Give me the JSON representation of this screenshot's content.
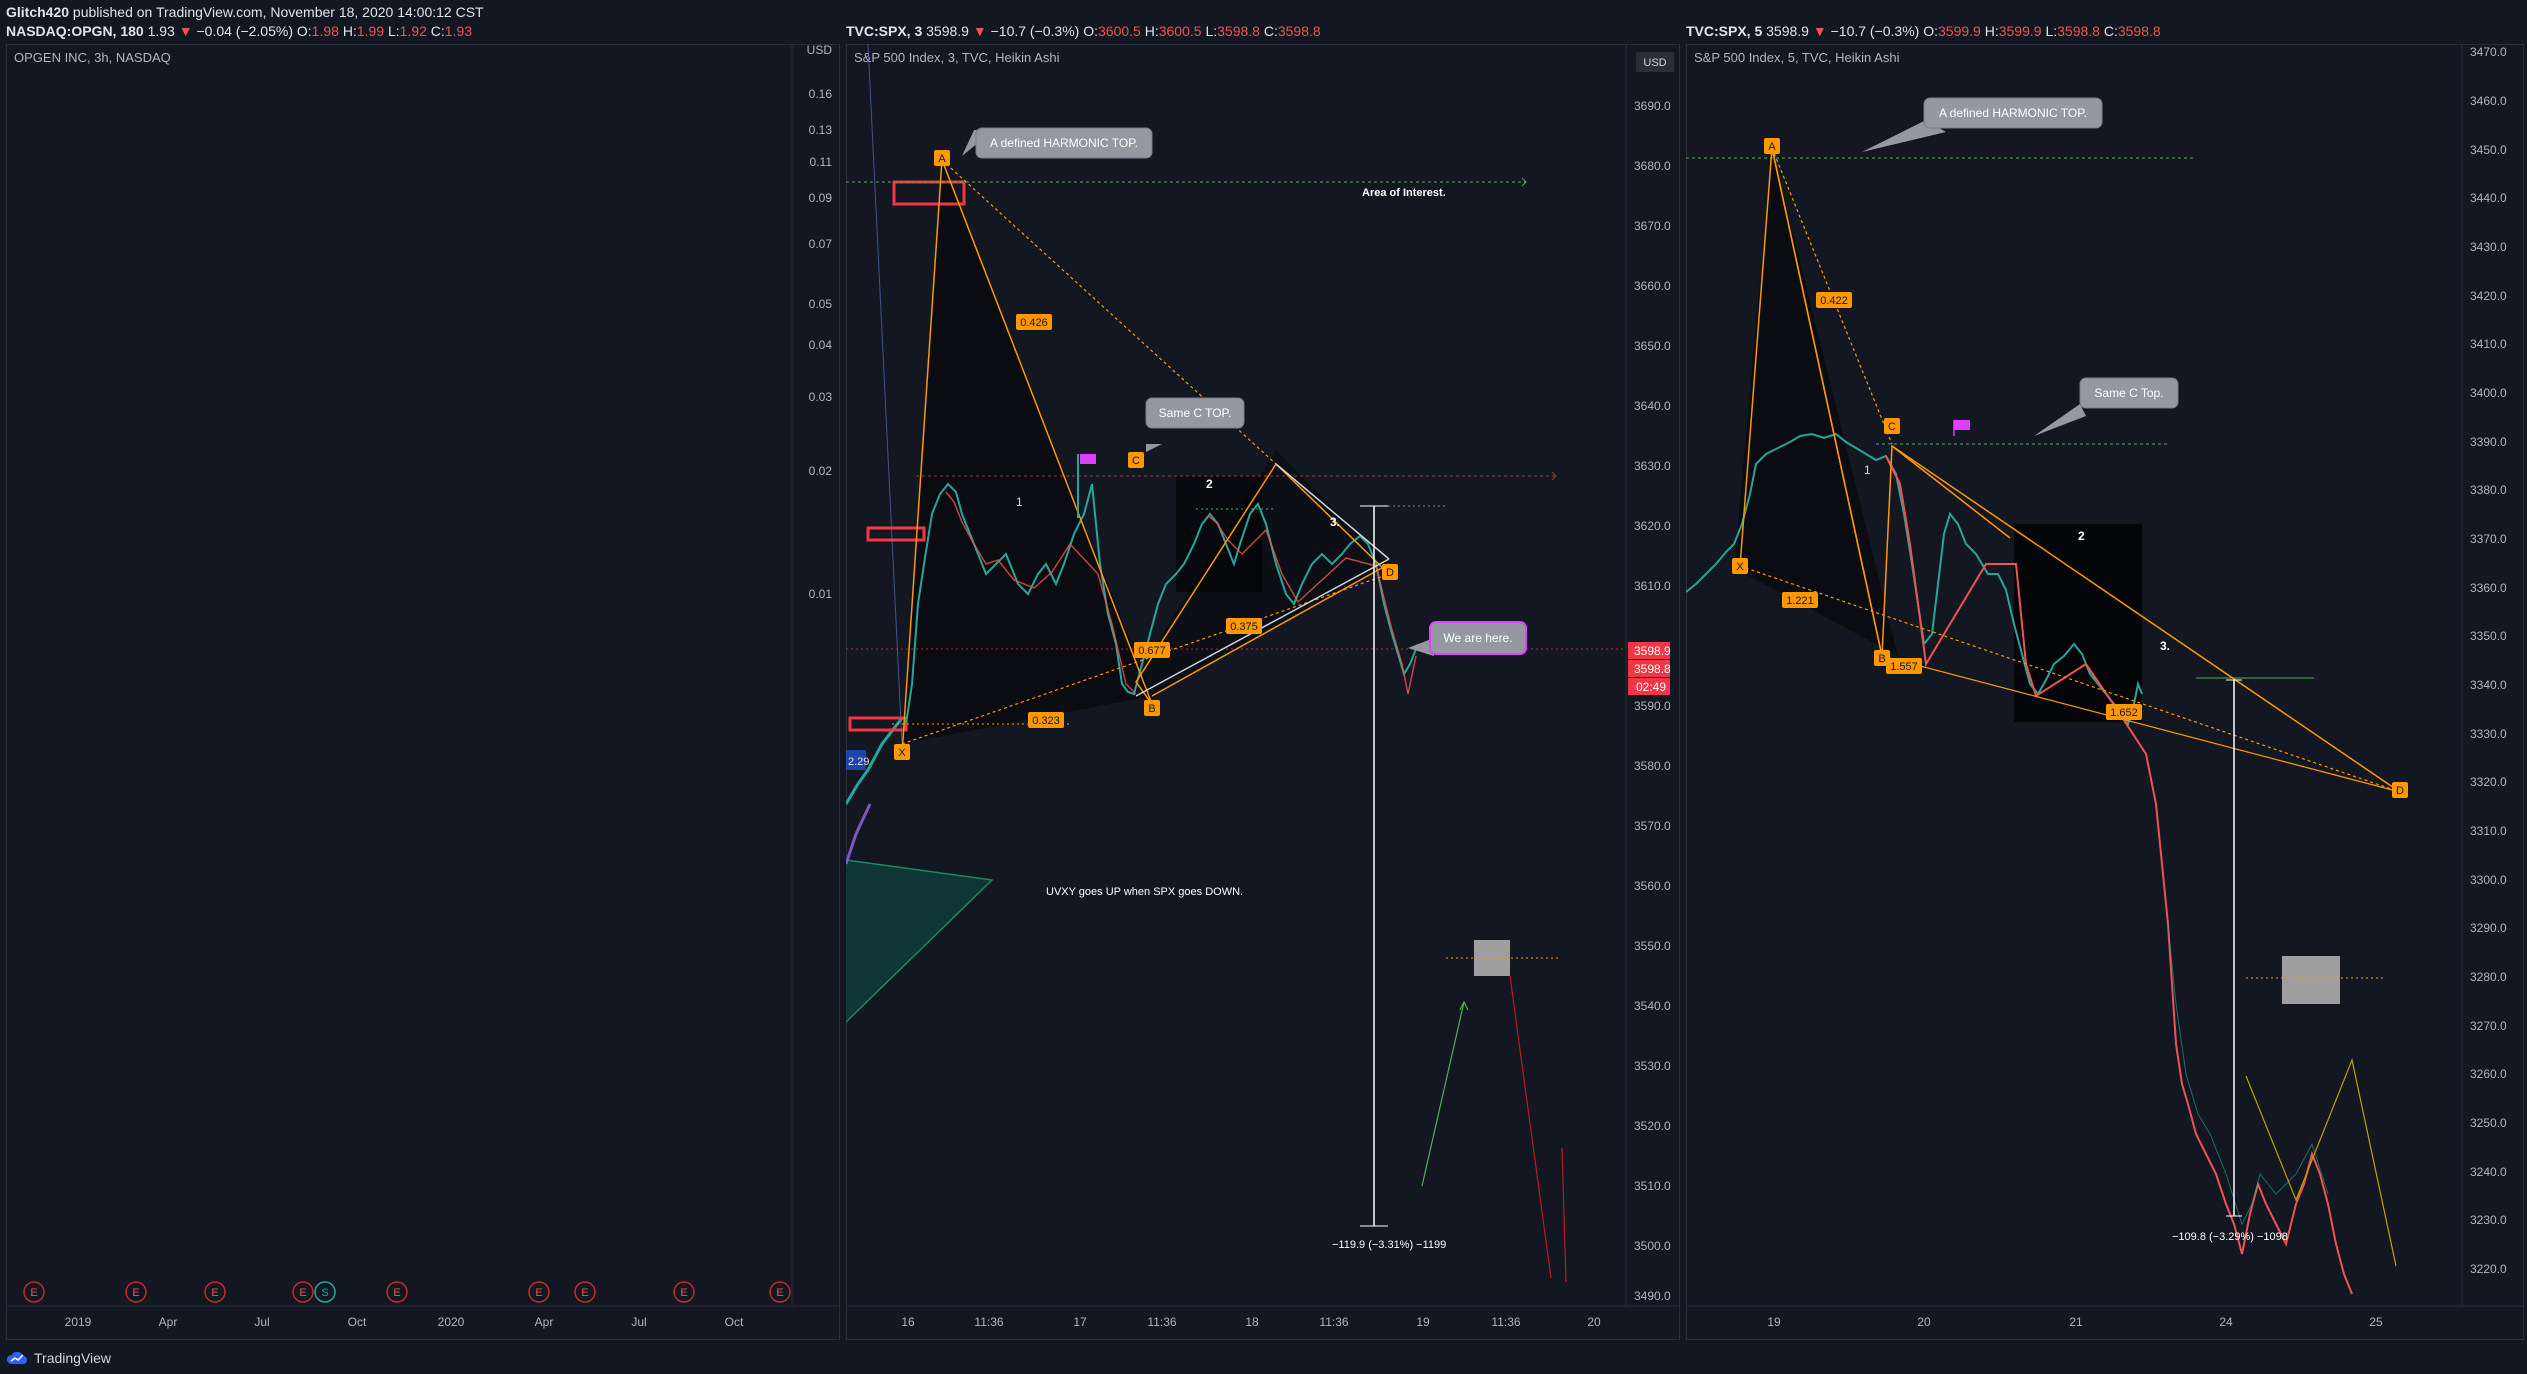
{
  "header": {
    "author": "Glitch420",
    "published": "published on TradingView.com, November 18, 2020 14:00:12 CST",
    "panel1": {
      "symbol": "NASDAQ:OPGN, 180",
      "last": "1.93",
      "change": "−0.04 (−2.05%)",
      "o_label": "O:",
      "o": "1.98",
      "h_label": "H:",
      "h": "1.99",
      "l_label": "L:",
      "l": "1.92",
      "c_label": "C:",
      "c": "1.93"
    },
    "panel2": {
      "symbol": "TVC:SPX, 3",
      "last": "3598.9",
      "change": "−10.7 (−0.3%)",
      "o_label": "O:",
      "o": "3600.5",
      "h_label": "H:",
      "h": "3600.5",
      "l_label": "L:",
      "l": "3598.8",
      "c_label": "C:",
      "c": "3598.8"
    },
    "panel3": {
      "symbol": "TVC:SPX, 5",
      "last": "3598.9",
      "change": "−10.7 (−0.3%)",
      "o_label": "O:",
      "o": "3599.9",
      "h_label": "H:",
      "h": "3599.9",
      "l_label": "L:",
      "l": "3598.8",
      "c_label": "C:",
      "c": "3598.8"
    }
  },
  "footer": {
    "brand": "TradingView"
  },
  "colors": {
    "background": "#131722",
    "up": "#26a69a",
    "down": "#ef5350",
    "harmonic": "#ff9800",
    "magenta": "#e91e63"
  },
  "panels": [
    {
      "legend": "OPGEN INC, 3h, NASDAQ",
      "y_ticks": [
        "USD",
        "0.16",
        "0.13",
        "0.11",
        "0.09",
        "0.07",
        "0.05",
        "0.04",
        "0.03",
        "0.02",
        "0.01"
      ],
      "x_ticks": [
        "2019",
        "Apr",
        "Jul",
        "Oct",
        "2020",
        "Apr",
        "Jul",
        "Oct"
      ],
      "earnings_markers": [
        "E",
        "E",
        "E",
        "E",
        "S",
        "E",
        "E",
        "E",
        "E",
        "E"
      ]
    },
    {
      "legend": "S&P 500 Index, 3, TVC, Heikin Ashi",
      "y_ticks": [
        "3690.0",
        "3680.0",
        "3670.0",
        "3660.0",
        "3650.0",
        "3640.0",
        "3630.0",
        "3620.0",
        "3610.0",
        "3590.0",
        "3580.0",
        "3570.0",
        "3560.0",
        "3550.0",
        "3540.0",
        "3530.0",
        "3520.0",
        "3510.0",
        "3500.0",
        "3490.0"
      ],
      "currency": "USD",
      "price_badges": [
        "3598.9",
        "3598.8",
        "02:49"
      ],
      "x_ticks": [
        "16",
        "11:36",
        "17",
        "11:36",
        "18",
        "11:36",
        "19",
        "11:36",
        "20"
      ],
      "callouts": [
        "A defined HARMONIC TOP.",
        "Same C TOP.",
        "We are here."
      ],
      "notes": [
        "Area of Interest.",
        "UVXY goes UP when SPX goes DOWN."
      ],
      "pattern_points": [
        "A",
        "B",
        "C",
        "D",
        "X"
      ],
      "ratios": [
        "0.426",
        "0.677",
        "0.323",
        "0.375"
      ],
      "wave_labels": [
        "1",
        "2",
        "3."
      ],
      "measure": "−119.9 (−3.31%) −1199",
      "edge_label": "2.29"
    },
    {
      "legend": "S&P 500 Index, 5, TVC, Heikin Ashi",
      "y_ticks": [
        "3470.0",
        "3460.0",
        "3450.0",
        "3440.0",
        "3430.0",
        "3420.0",
        "3410.0",
        "3400.0",
        "3390.0",
        "3380.0",
        "3370.0",
        "3360.0",
        "3350.0",
        "3340.0",
        "3330.0",
        "3320.0",
        "3310.0",
        "3300.0",
        "3290.0",
        "3280.0",
        "3270.0",
        "3260.0",
        "3250.0",
        "3240.0",
        "3230.0",
        "3220.0"
      ],
      "x_ticks": [
        "19",
        "20",
        "21",
        "24",
        "25"
      ],
      "callouts": [
        "A defined HARMONIC TOP.",
        "Same C Top."
      ],
      "pattern_points": [
        "A",
        "B",
        "C",
        "D",
        "X"
      ],
      "ratios": [
        "0.422",
        "1.221",
        "1.557",
        "1.652"
      ],
      "wave_labels": [
        "1",
        "2",
        "3."
      ],
      "measure": "−109.8 (−3.29%) −1098"
    }
  ]
}
